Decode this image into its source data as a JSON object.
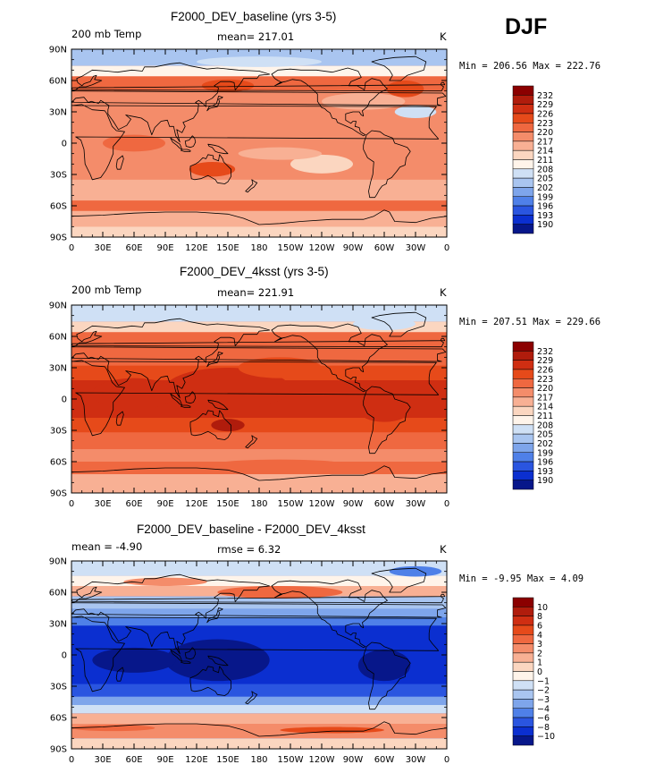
{
  "figure": {
    "season": "DJF",
    "x_ticks": [
      "0",
      "30E",
      "60E",
      "90E",
      "120E",
      "150E",
      "180",
      "150W",
      "120W",
      "90W",
      "60W",
      "30W",
      "0"
    ],
    "y_ticks": [
      "90N",
      "60N",
      "30N",
      "0",
      "30S",
      "60S",
      "90S"
    ]
  },
  "panels": [
    {
      "title": "F2000_DEV_baseline (yrs 3-5)",
      "left_label": "200 mb Temp",
      "center_label": "mean=  217.01",
      "right_label": "K",
      "min_label": "Min =",
      "min_value": "206.56",
      "max_label": "Max =",
      "max_value": "222.76"
    },
    {
      "title": "F2000_DEV_4ksst (yrs 3-5)",
      "left_label": "200 mb Temp",
      "center_label": "mean=  221.91",
      "right_label": "K",
      "min_label": "Min =",
      "min_value": "207.51",
      "max_label": "Max =",
      "max_value": "229.66"
    },
    {
      "title": "F2000_DEV_baseline - F2000_DEV_4ksst",
      "left_label": "mean =   -4.90",
      "center_label": "rmse =    6.32",
      "right_label": "K",
      "min_label": "Min =",
      "min_value": "-9.95",
      "max_label": "Max =",
      "max_value": "4.09"
    }
  ],
  "colorbars": {
    "absolute": {
      "labels": [
        "232",
        "229",
        "226",
        "223",
        "220",
        "217",
        "214",
        "211",
        "208",
        "205",
        "202",
        "199",
        "196",
        "193",
        "190"
      ],
      "colors": [
        "#8b0000",
        "#b01c0c",
        "#cf2e12",
        "#e64a1a",
        "#ef6840",
        "#f48c6a",
        "#f8b094",
        "#fbd6c0",
        "#fff4ea",
        "#cfe0f5",
        "#a9c5f0",
        "#7ea5eb",
        "#4f80e8",
        "#2a55e0",
        "#0b2fd0",
        "#07178a"
      ]
    },
    "difference": {
      "labels": [
        "10",
        "8",
        "6",
        "4",
        "3",
        "2",
        "1",
        "0",
        "−1",
        "−2",
        "−3",
        "−4",
        "−6",
        "−8",
        "−10"
      ],
      "colors": [
        "#8b0000",
        "#b01c0c",
        "#cf2e12",
        "#e64a1a",
        "#ef6840",
        "#f48c6a",
        "#f8b094",
        "#fbd6c0",
        "#fff4ea",
        "#cfe0f5",
        "#a9c5f0",
        "#7ea5eb",
        "#4f80e8",
        "#2a55e0",
        "#0b2fd0",
        "#07178a"
      ]
    }
  }
}
